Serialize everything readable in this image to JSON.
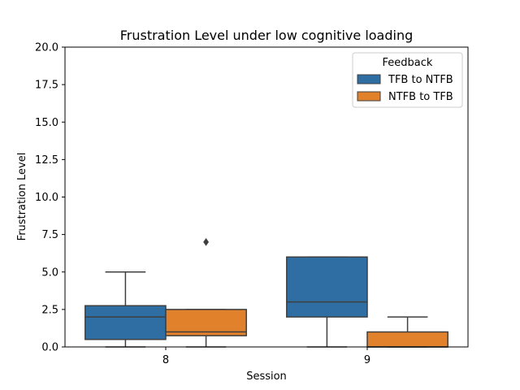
{
  "chart_data": {
    "type": "box",
    "title": "Frustration Level under low cognitive loading",
    "xlabel": "Session",
    "ylabel": "Frustration Level",
    "ylim": [
      0,
      20
    ],
    "yticks": [
      "0.0",
      "2.5",
      "5.0",
      "7.5",
      "10.0",
      "12.5",
      "15.0",
      "17.5",
      "20.0"
    ],
    "categories": [
      "8",
      "9"
    ],
    "legend": {
      "title": "Feedback",
      "placement": "top-right"
    },
    "series": [
      {
        "name": "TFB to NTFB",
        "color": "#2f6ea3",
        "boxes": [
          {
            "category": "8",
            "whisker_low": 0,
            "q1": 0.5,
            "median": 2,
            "q3": 2.75,
            "whisker_high": 5,
            "outliers": []
          },
          {
            "category": "9",
            "whisker_low": 0,
            "q1": 2,
            "median": 3,
            "q3": 6,
            "whisker_high": 6,
            "outliers": []
          }
        ]
      },
      {
        "name": "NTFB to TFB",
        "color": "#e1812c",
        "boxes": [
          {
            "category": "8",
            "whisker_low": 0,
            "q1": 0.75,
            "median": 1,
            "q3": 2.5,
            "whisker_high": 2.5,
            "outliers": [
              7
            ]
          },
          {
            "category": "9",
            "whisker_low": 0,
            "q1": 0,
            "median": 0,
            "q3": 1,
            "whisker_high": 2,
            "outliers": []
          }
        ]
      }
    ]
  }
}
